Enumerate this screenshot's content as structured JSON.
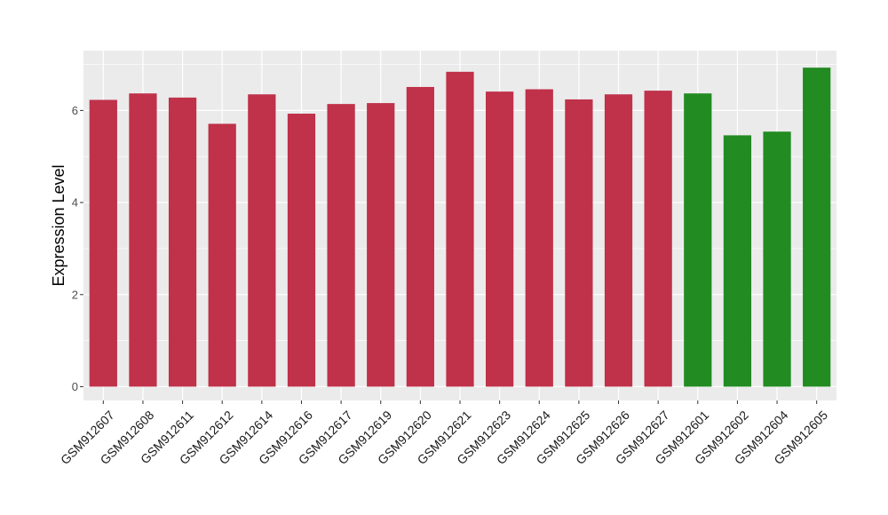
{
  "chart_data": {
    "type": "bar",
    "title": "",
    "xlabel": "",
    "ylabel": "Expression Level",
    "ylim": [
      -0.3,
      7.3
    ],
    "yticks": [
      0,
      2,
      4,
      6
    ],
    "grid": true,
    "legend": "none",
    "colors": {
      "group_a": "#C0314A",
      "group_b": "#228B22",
      "panel_bg": "#EBEBEB",
      "grid": "#FFFFFF"
    },
    "categories": [
      "GSM912607",
      "GSM912608",
      "GSM912611",
      "GSM912612",
      "GSM912614",
      "GSM912616",
      "GSM912617",
      "GSM912619",
      "GSM912620",
      "GSM912621",
      "GSM912623",
      "GSM912624",
      "GSM912625",
      "GSM912626",
      "GSM912627",
      "GSM912601",
      "GSM912602",
      "GSM912604",
      "GSM912605"
    ],
    "values": [
      6.23,
      6.37,
      6.28,
      5.71,
      6.35,
      5.93,
      6.14,
      6.16,
      6.51,
      6.84,
      6.41,
      6.46,
      6.24,
      6.35,
      6.43,
      6.37,
      5.46,
      5.54,
      6.93
    ],
    "bar_colors": [
      "#C0314A",
      "#C0314A",
      "#C0314A",
      "#C0314A",
      "#C0314A",
      "#C0314A",
      "#C0314A",
      "#C0314A",
      "#C0314A",
      "#C0314A",
      "#C0314A",
      "#C0314A",
      "#C0314A",
      "#C0314A",
      "#C0314A",
      "#228B22",
      "#228B22",
      "#228B22",
      "#228B22"
    ]
  }
}
